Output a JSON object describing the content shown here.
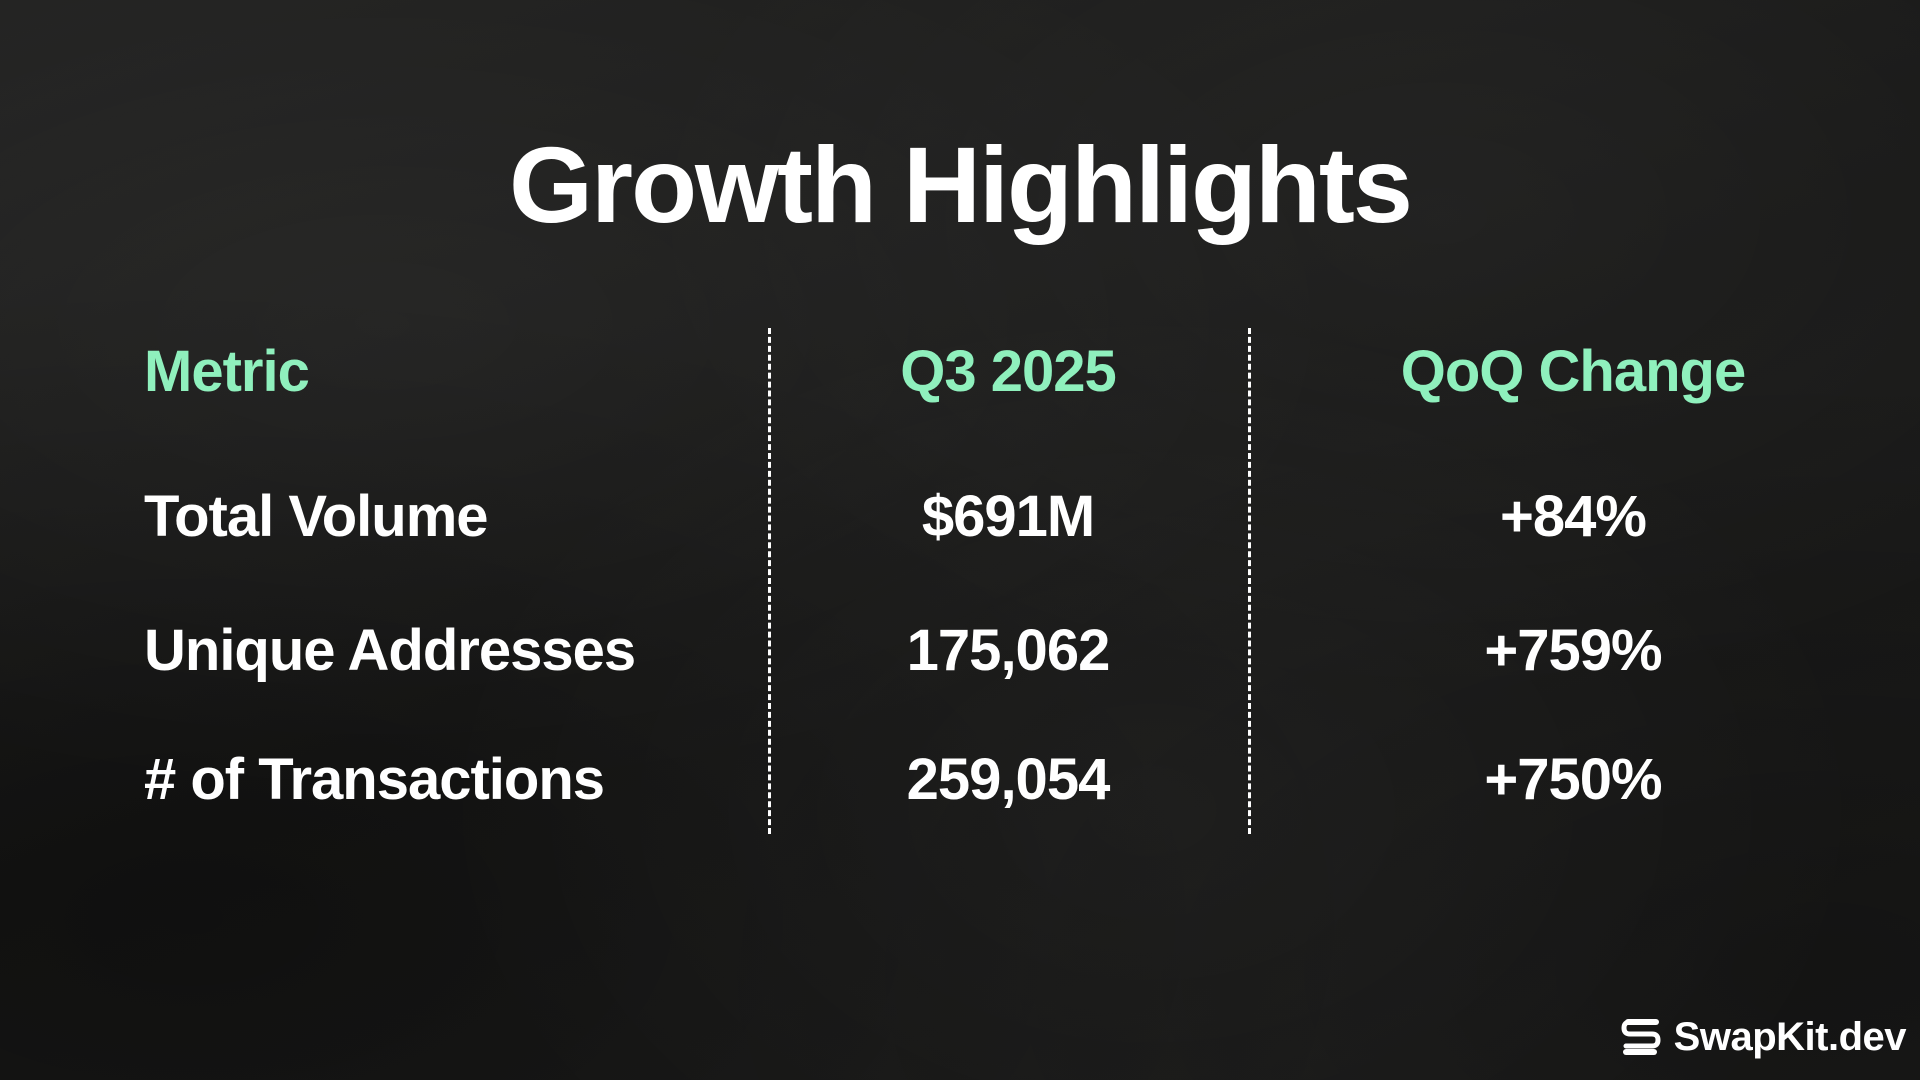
{
  "slide": {
    "title": "Growth Highlights"
  },
  "table": {
    "headers": {
      "metric": "Metric",
      "q3": "Q3 2025",
      "qoq": "QoQ Change"
    },
    "rows": [
      {
        "metric": "Total Volume",
        "q3": "$691M",
        "qoq": "+84%"
      },
      {
        "metric": "Unique Addresses",
        "q3": "175,062",
        "qoq": "+759%"
      },
      {
        "metric": "# of Transactions",
        "q3": "259,054",
        "qoq": "+750%"
      }
    ]
  },
  "brand": {
    "name": "SwapKit.dev",
    "logo_icon": "swapkit-logo-icon"
  },
  "colors": {
    "accent": "#8ff0bd",
    "text": "#ffffff",
    "background": "#1b1b1a"
  }
}
